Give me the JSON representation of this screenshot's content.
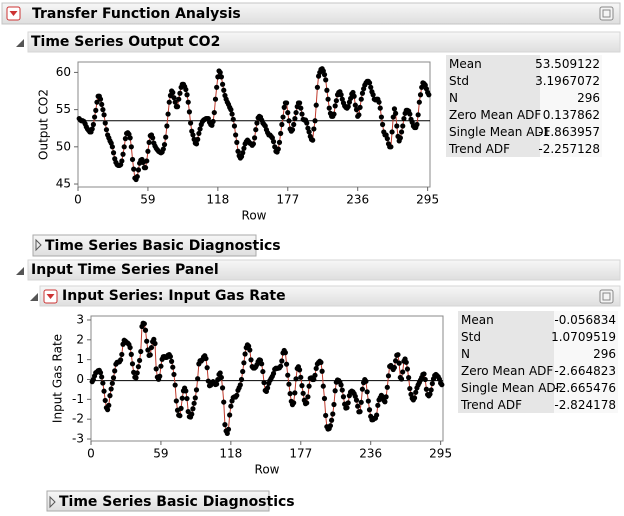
{
  "title": "Transfer Function Analysis",
  "outlines": [
    "Time Series Output CO2",
    "Time Series Basic Diagnostics",
    "Input Time Series Panel",
    "Input Series: Input Gas Rate",
    "Time Series Basic Diagnostics"
  ],
  "chart_data": [
    {
      "type": "line",
      "markers": true,
      "xlabel": "Row",
      "ylabel": "Output CO2",
      "color": "#000000",
      "line_color": "#c0392b",
      "xlim": [
        0,
        297
      ],
      "ylim": [
        44.6,
        61.4
      ],
      "xticks": [
        0,
        59,
        118,
        177,
        236,
        295
      ],
      "yticks": [
        45,
        50,
        55,
        60
      ],
      "x": [
        1,
        2,
        3,
        4,
        5,
        6,
        7,
        8,
        9,
        10,
        11,
        12,
        13,
        14,
        15,
        16,
        17,
        18,
        19,
        20,
        21,
        22,
        23,
        24,
        25,
        26,
        27,
        28,
        29,
        30,
        31,
        32,
        33,
        34,
        35,
        36,
        37,
        38,
        39,
        40,
        41,
        42,
        43,
        44,
        45,
        46,
        47,
        48,
        49,
        50,
        51,
        52,
        53,
        54,
        55,
        56,
        57,
        58,
        59,
        60,
        61,
        62,
        63,
        64,
        65,
        66,
        67,
        68,
        69,
        70,
        71,
        72,
        73,
        74,
        75,
        76,
        77,
        78,
        79,
        80,
        81,
        82,
        83,
        84,
        85,
        86,
        87,
        88,
        89,
        90,
        91,
        92,
        93,
        94,
        95,
        96,
        97,
        98,
        99,
        100,
        101,
        102,
        103,
        104,
        105,
        106,
        107,
        108,
        109,
        110,
        111,
        112,
        113,
        114,
        115,
        116,
        117,
        118,
        119,
        120,
        121,
        122,
        123,
        124,
        125,
        126,
        127,
        128,
        129,
        130,
        131,
        132,
        133,
        134,
        135,
        136,
        137,
        138,
        139,
        140,
        141,
        142,
        143,
        144,
        145,
        146,
        147,
        148,
        149,
        150,
        151,
        152,
        153,
        154,
        155,
        156,
        157,
        158,
        159,
        160,
        161,
        162,
        163,
        164,
        165,
        166,
        167,
        168,
        169,
        170,
        171,
        172,
        173,
        174,
        175,
        176,
        177,
        178,
        179,
        180,
        181,
        182,
        183,
        184,
        185,
        186,
        187,
        188,
        189,
        190,
        191,
        192,
        193,
        194,
        195,
        196,
        197,
        198,
        199,
        200,
        201,
        202,
        203,
        204,
        205,
        206,
        207,
        208,
        209,
        210,
        211,
        212,
        213,
        214,
        215,
        216,
        217,
        218,
        219,
        220,
        221,
        222,
        223,
        224,
        225,
        226,
        227,
        228,
        229,
        230,
        231,
        232,
        233,
        234,
        235,
        236,
        237,
        238,
        239,
        240,
        241,
        242,
        243,
        244,
        245,
        246,
        247,
        248,
        249,
        250,
        251,
        252,
        253,
        254,
        255,
        256,
        257,
        258,
        259,
        260,
        261,
        262,
        263,
        264,
        265,
        266,
        267,
        268,
        269,
        270,
        271,
        272,
        273,
        274,
        275,
        276,
        277,
        278,
        279,
        280,
        281,
        282,
        283,
        284,
        285,
        286,
        287,
        288,
        289,
        290,
        291,
        292,
        293,
        294,
        295,
        296
      ],
      "values": [
        53.8,
        53.6,
        53.5,
        53.5,
        53.4,
        53.1,
        52.7,
        52.4,
        52.2,
        52.0,
        52.0,
        52.4,
        53.0,
        54.0,
        54.9,
        56.0,
        56.8,
        56.8,
        56.4,
        55.7,
        55.0,
        54.3,
        53.2,
        52.3,
        51.6,
        51.2,
        50.8,
        50.5,
        50.0,
        49.2,
        48.4,
        47.9,
        47.6,
        47.5,
        47.5,
        47.6,
        48.1,
        49.0,
        50.0,
        51.1,
        51.8,
        51.9,
        51.7,
        51.2,
        50.0,
        48.3,
        47.0,
        45.8,
        45.6,
        46.0,
        46.9,
        47.8,
        48.2,
        48.3,
        47.9,
        47.2,
        47.2,
        48.1,
        49.4,
        50.6,
        51.5,
        51.6,
        51.2,
        50.5,
        50.1,
        49.8,
        49.6,
        49.4,
        49.3,
        49.2,
        49.3,
        49.7,
        50.3,
        51.3,
        52.8,
        54.4,
        56.0,
        56.9,
        57.5,
        57.3,
        56.6,
        56.0,
        55.4,
        55.4,
        56.4,
        57.2,
        58.0,
        58.4,
        58.4,
        58.1,
        57.7,
        57.0,
        56.0,
        54.7,
        53.2,
        52.1,
        51.6,
        51.0,
        50.5,
        50.4,
        51.0,
        51.8,
        52.4,
        53.0,
        53.4,
        53.6,
        53.7,
        53.8,
        53.8,
        53.8,
        53.3,
        53.0,
        52.9,
        53.4,
        54.6,
        56.4,
        58.0,
        59.4,
        60.2,
        60.0,
        59.4,
        58.4,
        57.6,
        56.9,
        56.4,
        56.0,
        55.7,
        55.3,
        55.0,
        54.4,
        53.7,
        52.8,
        51.6,
        50.6,
        49.4,
        48.8,
        48.5,
        48.7,
        49.2,
        49.8,
        50.4,
        50.7,
        50.9,
        50.7,
        50.5,
        50.4,
        50.2,
        50.4,
        51.2,
        52.3,
        53.2,
        53.9,
        54.1,
        54.0,
        53.6,
        53.2,
        53.0,
        52.8,
        52.3,
        51.9,
        51.6,
        51.6,
        51.4,
        51.2,
        50.7,
        50.0,
        49.4,
        49.3,
        49.7,
        50.6,
        51.8,
        53.0,
        54.0,
        55.3,
        55.9,
        55.9,
        54.6,
        53.5,
        52.4,
        52.1,
        52.3,
        53.0,
        53.8,
        54.6,
        55.4,
        55.9,
        55.9,
        55.2,
        54.4,
        53.7,
        53.6,
        53.6,
        53.2,
        52.5,
        52.0,
        51.4,
        51.0,
        50.9,
        52.4,
        53.5,
        55.6,
        58.0,
        59.5,
        60.0,
        60.4,
        60.5,
        60.2,
        59.7,
        59.0,
        57.6,
        56.4,
        55.2,
        54.5,
        54.1,
        54.1,
        54.4,
        55.5,
        56.2,
        57.0,
        57.3,
        57.4,
        57.0,
        56.4,
        55.9,
        55.5,
        55.3,
        55.2,
        55.4,
        56.0,
        56.5,
        57.1,
        57.3,
        56.8,
        55.6,
        55.0,
        54.1,
        54.3,
        55.3,
        56.4,
        57.2,
        57.8,
        58.3,
        58.6,
        58.8,
        58.8,
        58.6,
        58.0,
        57.4,
        57.0,
        56.4,
        56.3,
        56.4,
        56.4,
        56.0,
        55.2,
        54.0,
        53.0,
        52.0,
        51.6,
        51.6,
        51.1,
        50.4,
        50.0,
        50.0,
        52.0,
        54.0,
        55.1,
        54.5,
        52.8,
        51.4,
        50.8,
        51.2,
        52.0,
        52.8,
        53.8,
        54.5,
        54.9,
        54.9,
        54.8,
        54.4,
        53.7,
        53.3,
        52.8,
        52.6,
        52.6,
        53.0,
        54.3,
        56.0,
        57.0,
        58.0,
        58.6,
        58.5,
        58.3,
        57.8,
        57.3,
        57.0
      ],
      "stats": {
        "labels": [
          "Mean",
          "Std",
          "N",
          "Zero Mean ADF",
          "Single Mean ADF",
          "Trend ADF"
        ],
        "values": [
          53.509122,
          3.1967072,
          296,
          0.137862,
          -1.863957,
          -2.257128
        ]
      }
    },
    {
      "type": "line",
      "markers": true,
      "xlabel": "Row",
      "ylabel": "Input Gas Rate",
      "color": "#000000",
      "line_color": "#c0392b",
      "xlim": [
        0,
        297
      ],
      "ylim": [
        -3.1,
        3.2
      ],
      "xticks": [
        0,
        59,
        118,
        177,
        236,
        295
      ],
      "yticks": [
        -3,
        -2,
        -1,
        0,
        1,
        2,
        3
      ],
      "x": [
        1,
        2,
        3,
        4,
        5,
        6,
        7,
        8,
        9,
        10,
        11,
        12,
        13,
        14,
        15,
        16,
        17,
        18,
        19,
        20,
        21,
        22,
        23,
        24,
        25,
        26,
        27,
        28,
        29,
        30,
        31,
        32,
        33,
        34,
        35,
        36,
        37,
        38,
        39,
        40,
        41,
        42,
        43,
        44,
        45,
        46,
        47,
        48,
        49,
        50,
        51,
        52,
        53,
        54,
        55,
        56,
        57,
        58,
        59,
        60,
        61,
        62,
        63,
        64,
        65,
        66,
        67,
        68,
        69,
        70,
        71,
        72,
        73,
        74,
        75,
        76,
        77,
        78,
        79,
        80,
        81,
        82,
        83,
        84,
        85,
        86,
        87,
        88,
        89,
        90,
        91,
        92,
        93,
        94,
        95,
        96,
        97,
        98,
        99,
        100,
        101,
        102,
        103,
        104,
        105,
        106,
        107,
        108,
        109,
        110,
        111,
        112,
        113,
        114,
        115,
        116,
        117,
        118,
        119,
        120,
        121,
        122,
        123,
        124,
        125,
        126,
        127,
        128,
        129,
        130,
        131,
        132,
        133,
        134,
        135,
        136,
        137,
        138,
        139,
        140,
        141,
        142,
        143,
        144,
        145,
        146,
        147,
        148,
        149,
        150,
        151,
        152,
        153,
        154,
        155,
        156,
        157,
        158,
        159,
        160,
        161,
        162,
        163,
        164,
        165,
        166,
        167,
        168,
        169,
        170,
        171,
        172,
        173,
        174,
        175,
        176,
        177,
        178,
        179,
        180,
        181,
        182,
        183,
        184,
        185,
        186,
        187,
        188,
        189,
        190,
        191,
        192,
        193,
        194,
        195,
        196,
        197,
        198,
        199,
        200,
        201,
        202,
        203,
        204,
        205,
        206,
        207,
        208,
        209,
        210,
        211,
        212,
        213,
        214,
        215,
        216,
        217,
        218,
        219,
        220,
        221,
        222,
        223,
        224,
        225,
        226,
        227,
        228,
        229,
        230,
        231,
        232,
        233,
        234,
        235,
        236,
        237,
        238,
        239,
        240,
        241,
        242,
        243,
        244,
        245,
        246,
        247,
        248,
        249,
        250,
        251,
        252,
        253,
        254,
        255,
        256,
        257,
        258,
        259,
        260,
        261,
        262,
        263,
        264,
        265,
        266,
        267,
        268,
        269,
        270,
        271,
        272,
        273,
        274,
        275,
        276,
        277,
        278,
        279,
        280,
        281,
        282,
        283,
        284,
        285,
        286,
        287,
        288,
        289,
        290,
        291,
        292,
        293,
        294,
        295,
        296
      ],
      "values": [
        -0.109,
        0.0,
        0.178,
        0.339,
        0.373,
        0.441,
        0.461,
        0.348,
        0.127,
        -0.18,
        -0.588,
        -1.055,
        -1.421,
        -1.52,
        -1.302,
        -0.814,
        -0.475,
        -0.193,
        0.088,
        0.435,
        0.771,
        0.866,
        0.875,
        0.891,
        0.987,
        1.263,
        1.775,
        1.976,
        1.934,
        1.866,
        1.832,
        1.767,
        1.608,
        1.265,
        0.79,
        0.36,
        0.115,
        0.088,
        0.331,
        0.645,
        0.96,
        1.409,
        2.67,
        2.834,
        2.812,
        2.483,
        1.929,
        1.485,
        1.214,
        1.239,
        1.608,
        1.905,
        2.023,
        1.815,
        0.535,
        0.122,
        0.009,
        0.164,
        0.671,
        1.019,
        1.146,
        1.155,
        1.112,
        1.121,
        1.223,
        1.257,
        1.157,
        0.913,
        0.62,
        0.255,
        -0.28,
        -1.08,
        -1.551,
        -1.799,
        -1.825,
        -1.456,
        -0.944,
        -0.57,
        -0.431,
        -0.577,
        -0.96,
        -1.616,
        -1.875,
        -1.891,
        -1.746,
        -1.474,
        -1.201,
        -0.927,
        -0.524,
        0.04,
        0.788,
        0.943,
        0.93,
        1.006,
        1.137,
        1.198,
        1.054,
        0.595,
        -0.08,
        -0.314,
        -0.288,
        -0.153,
        -0.109,
        -0.187,
        -0.255,
        -0.229,
        -0.007,
        0.254,
        0.33,
        0.102,
        -0.423,
        -1.139,
        -2.275,
        -2.594,
        -2.716,
        -2.51,
        -1.79,
        -1.346,
        -1.081,
        -0.91,
        -0.876,
        -0.885,
        -0.8,
        -0.544,
        -0.416,
        -0.271,
        0.0,
        0.403,
        0.841,
        1.285,
        1.607,
        1.746,
        1.683,
        1.485,
        0.993,
        0.648,
        0.577,
        0.577,
        0.632,
        0.747,
        0.9,
        0.993,
        0.968,
        0.79,
        0.399,
        -0.161,
        -0.553,
        -0.603,
        -0.424,
        -0.194,
        -0.049,
        0.06,
        0.161,
        0.301,
        0.517,
        0.566,
        0.56,
        0.573,
        0.592,
        0.671,
        0.933,
        1.337,
        1.46,
        1.353,
        0.772,
        0.218,
        -0.237,
        -0.714,
        -1.099,
        -1.269,
        -1.175,
        -0.676,
        0.033,
        0.556,
        0.643,
        0.484,
        0.109,
        -0.31,
        -0.697,
        -1.047,
        -1.218,
        -1.183,
        -0.873,
        -0.336,
        0.063,
        0.084,
        0.0,
        0.001,
        0.209,
        0.556,
        0.782,
        0.858,
        0.918,
        0.862,
        0.416,
        -0.336,
        -0.959,
        -1.813,
        -2.378,
        -2.499,
        -2.473,
        -2.33,
        -2.053,
        -1.739,
        -1.261,
        -0.569,
        -0.137,
        -0.024,
        -0.05,
        -0.135,
        -0.276,
        -0.534,
        -0.871,
        -1.243,
        -1.439,
        -1.422,
        -1.175,
        -0.813,
        -0.634,
        -0.582,
        -0.625,
        -0.713,
        -0.848,
        -1.039,
        -1.346,
        -1.628,
        -1.619,
        -1.149,
        -0.488,
        -0.16,
        -0.007,
        -0.092,
        -0.62,
        -1.086,
        -1.525,
        -1.858,
        -2.029,
        -2.024,
        -1.961,
        -1.952,
        -1.794,
        -1.302,
        -1.03,
        -0.918,
        -0.798,
        -0.867,
        -1.047,
        -1.123,
        -0.876,
        -0.395,
        0.185,
        0.662,
        0.709,
        0.605,
        0.501,
        0.603,
        0.943,
        1.223,
        1.249,
        0.824,
        0.102,
        0.025,
        0.382,
        0.922,
        1.032,
        0.866,
        0.527,
        0.093,
        -0.458,
        -0.748,
        -0.947,
        -1.029,
        -0.928,
        -0.645,
        -0.424,
        -0.276,
        -0.158,
        -0.033,
        0.102,
        0.251,
        0.28,
        0.0,
        -0.493,
        -0.759,
        -0.824,
        -0.74,
        -0.528,
        -0.204,
        0.034,
        0.204,
        0.253,
        0.195,
        0.131,
        0.017,
        -0.182,
        -0.262
      ],
      "stats": {
        "labels": [
          "Mean",
          "Std",
          "N",
          "Zero Mean ADF",
          "Single Mean ADF",
          "Trend ADF"
        ],
        "values": [
          -0.056834,
          1.0709519,
          296,
          -2.664823,
          -2.665476,
          -2.824178
        ]
      }
    }
  ]
}
